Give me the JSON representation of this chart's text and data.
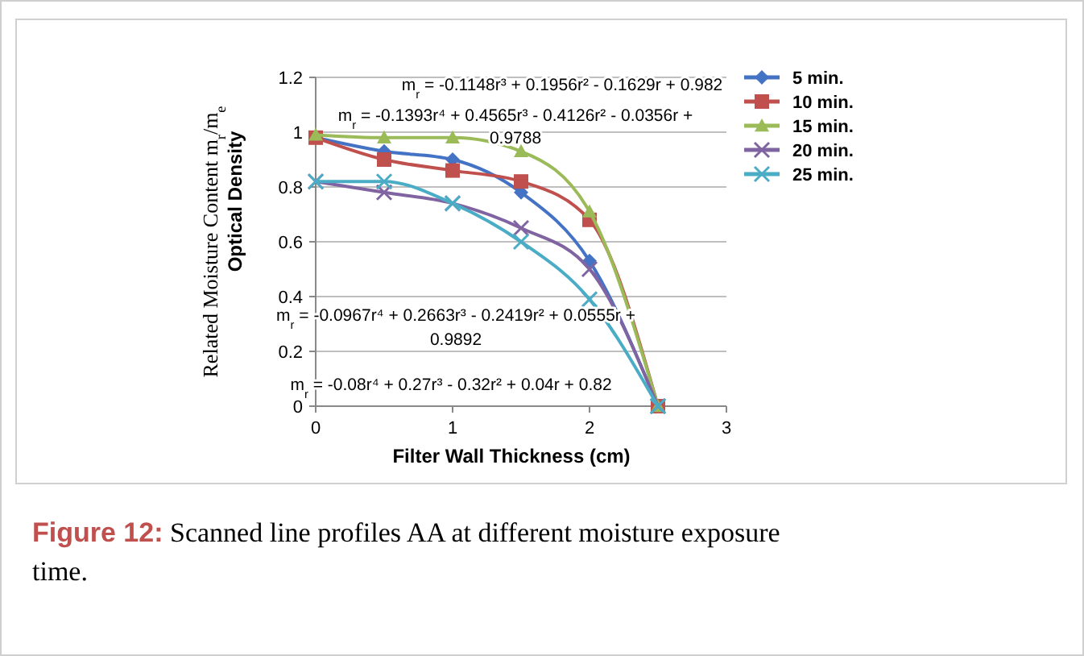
{
  "chart_data": {
    "type": "line",
    "xlabel": "Filter Wall Thickness (cm)",
    "ylabel": "Related Moisture Content m$_{r}$/m$_{e}$",
    "x": [
      0,
      0.5,
      1,
      1.5,
      2,
      2.5
    ],
    "xlim": [
      0,
      3
    ],
    "xticks": [
      0,
      1,
      2,
      3
    ],
    "ylim": [
      0,
      1.2
    ],
    "yticks": [
      0,
      0.2,
      0.4,
      0.6,
      0.8,
      1,
      1.2
    ],
    "grid": "y",
    "legend": "right",
    "series": [
      {
        "name": "5 min.",
        "color": "#4472c4",
        "marker": "diamond",
        "values": [
          0.98,
          0.93,
          0.9,
          0.78,
          0.53,
          0
        ]
      },
      {
        "name": "10 min.",
        "color": "#c0504d",
        "marker": "square",
        "values": [
          0.98,
          0.9,
          0.86,
          0.82,
          0.68,
          0
        ]
      },
      {
        "name": "15 min.",
        "color": "#9bbb59",
        "marker": "triangle",
        "values": [
          0.99,
          0.98,
          0.98,
          0.93,
          0.71,
          0
        ]
      },
      {
        "name": "20 min.",
        "color": "#8064a2",
        "marker": "cross",
        "values": [
          0.82,
          0.78,
          0.74,
          0.65,
          0.5,
          0
        ]
      },
      {
        "name": "25 min.",
        "color": "#4bacc6",
        "marker": "cross",
        "values": [
          0.82,
          0.82,
          0.74,
          0.6,
          0.39,
          0
        ]
      }
    ],
    "annotations": [
      "Optical Density",
      "m$_{r}$ = -0.1148r³ + 0.1956r² - 0.1629r + 0.982",
      "m$_{r}$ = -0.1393r⁴ + 0.4565r³ - 0.4126r² - 0.0356r +",
      "0.9788",
      "m$_{r}$ = -0.0967r⁴ + 0.2663r³ - 0.2419r² + 0.0555r +",
      "0.9892",
      "m$_{r}$ = -0.08r⁴ + 0.27r³ - 0.32r² + 0.04r + 0.82",
      "Figure 12: Scanned line profiles AA at different moisture exposure time."
    ]
  }
}
